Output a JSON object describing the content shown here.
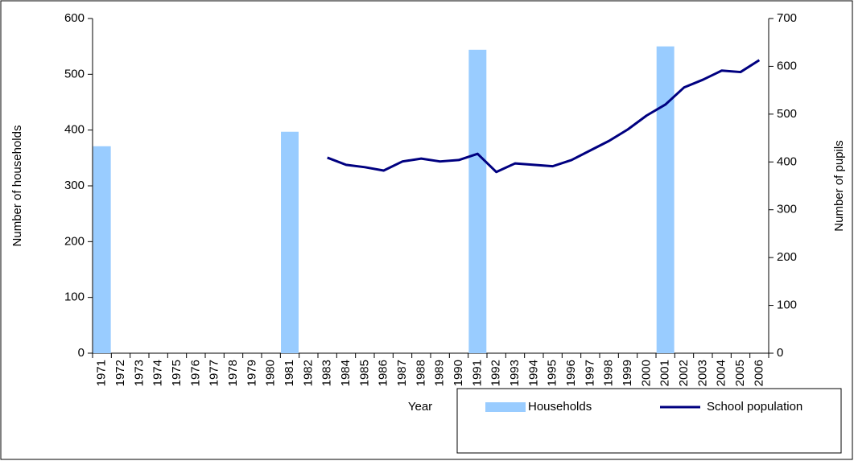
{
  "chart_data": {
    "type": "bar",
    "x_label": "Year",
    "y_label": "Number of households",
    "y2_label": "Number of pupils",
    "categories": [
      "1971",
      "1972",
      "1973",
      "1974",
      "1975",
      "1976",
      "1977",
      "1978",
      "1979",
      "1980",
      "1981",
      "1982",
      "1983",
      "1984",
      "1985",
      "1986",
      "1987",
      "1988",
      "1989",
      "1990",
      "1991",
      "1992",
      "1993",
      "1994",
      "1995",
      "1996",
      "1997",
      "1998",
      "1999",
      "2000",
      "2001",
      "2002",
      "2003",
      "2004",
      "2005",
      "2006"
    ],
    "series": [
      {
        "name": "Households",
        "type": "bar",
        "color": "#99ccff",
        "values": [
          371,
          null,
          null,
          null,
          null,
          null,
          null,
          null,
          null,
          null,
          397,
          null,
          null,
          null,
          null,
          null,
          null,
          null,
          null,
          null,
          544,
          null,
          null,
          null,
          null,
          null,
          null,
          null,
          null,
          null,
          550,
          null,
          null,
          null,
          null,
          null
        ]
      },
      {
        "name": "School population",
        "type": "line",
        "axis": "y2",
        "color": "#000080",
        "values": [
          null,
          null,
          null,
          null,
          null,
          null,
          null,
          null,
          null,
          null,
          null,
          null,
          409,
          394,
          389,
          382,
          401,
          407,
          401,
          404,
          417,
          379,
          397,
          394,
          391,
          404,
          424,
          444,
          468,
          497,
          520,
          556,
          572,
          591,
          588,
          613
        ]
      }
    ],
    "ylim": [
      0,
      600
    ],
    "yticks": [
      0,
      100,
      200,
      300,
      400,
      500,
      600
    ],
    "y2lim": [
      0,
      700
    ],
    "y2ticks": [
      0,
      100,
      200,
      300,
      400,
      500,
      600,
      700
    ],
    "grid": false
  }
}
